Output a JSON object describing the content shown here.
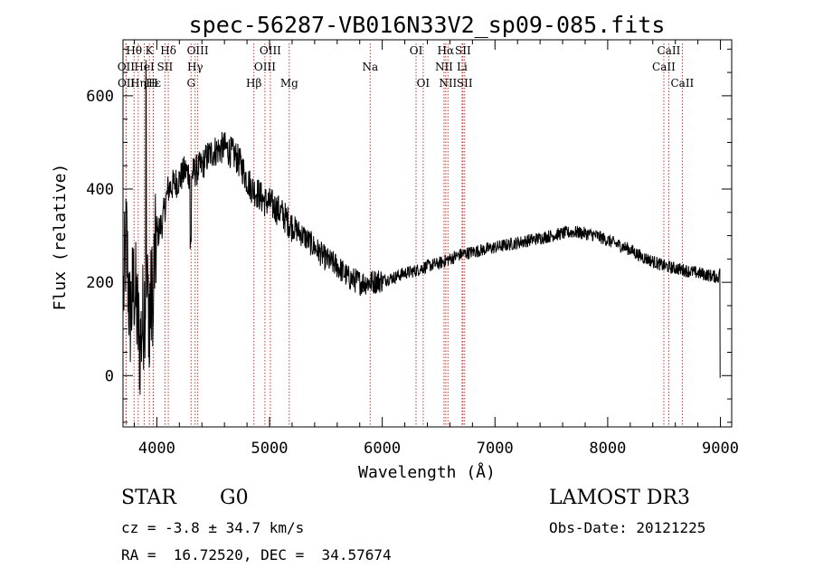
{
  "chart_data": {
    "type": "line",
    "title": "spec-56287-VB016N33V2_sp09-085.fits",
    "xlabel": "Wavelength (Å)",
    "ylabel": "Flux (relative)",
    "xlim": [
      3700,
      9100
    ],
    "ylim": [
      -110,
      720
    ],
    "xticks": [
      4000,
      5000,
      6000,
      7000,
      8000,
      9000
    ],
    "yticks": [
      0,
      200,
      400,
      600
    ],
    "lines": [
      {
        "label": "OII",
        "wl": 3727,
        "row": 1
      },
      {
        "label": "OII",
        "wl": 3729,
        "row": 2
      },
      {
        "label": "Hθ",
        "wl": 3798,
        "row": 0
      },
      {
        "label": "Hη",
        "wl": 3835,
        "row": 2
      },
      {
        "label": "HeI",
        "wl": 3889,
        "row": 1
      },
      {
        "label": "K",
        "wl": 3934,
        "row": 0
      },
      {
        "label": "H",
        "wl": 3968,
        "row": 2
      },
      {
        "label": "Hε",
        "wl": 3970,
        "row": 2
      },
      {
        "label": "SII",
        "wl": 4072,
        "row": 1
      },
      {
        "label": "Hδ",
        "wl": 4102,
        "row": 0
      },
      {
        "label": "G",
        "wl": 4304,
        "row": 2
      },
      {
        "label": "Hγ",
        "wl": 4340,
        "row": 1
      },
      {
        "label": "OIII",
        "wl": 4363,
        "row": 0
      },
      {
        "label": "Hβ",
        "wl": 4861,
        "row": 2
      },
      {
        "label": "OIII",
        "wl": 4959,
        "row": 1
      },
      {
        "label": "OIII",
        "wl": 5007,
        "row": 0
      },
      {
        "label": "Mg",
        "wl": 5175,
        "row": 2
      },
      {
        "label": "Na",
        "wl": 5893,
        "row": 1
      },
      {
        "label": "OI",
        "wl": 6300,
        "row": 0
      },
      {
        "label": "OI",
        "wl": 6363,
        "row": 2
      },
      {
        "label": "NII",
        "wl": 6548,
        "row": 1
      },
      {
        "label": "Hα",
        "wl": 6563,
        "row": 0
      },
      {
        "label": "NII",
        "wl": 6583,
        "row": 2
      },
      {
        "label": "Li",
        "wl": 6708,
        "row": 1
      },
      {
        "label": "SII",
        "wl": 6716,
        "row": 0
      },
      {
        "label": "SII",
        "wl": 6731,
        "row": 2
      },
      {
        "label": "CaII",
        "wl": 8498,
        "row": 1
      },
      {
        "label": "CaII",
        "wl": 8542,
        "row": 0
      },
      {
        "label": "CaII",
        "wl": 8662,
        "row": 2
      }
    ],
    "spectrum": {
      "description": "approximate continuum of the plotted spectrum (wavelength Å, relative flux)",
      "x": [
        3700,
        3730,
        3760,
        3800,
        3850,
        3900,
        3950,
        4000,
        4050,
        4100,
        4150,
        4200,
        4250,
        4300,
        4350,
        4400,
        4450,
        4500,
        4550,
        4600,
        4650,
        4700,
        4750,
        4800,
        4850,
        4900,
        4950,
        5000,
        5050,
        5100,
        5150,
        5200,
        5300,
        5400,
        5500,
        5600,
        5700,
        5800,
        5900,
        6000,
        6100,
        6200,
        6300,
        6400,
        6500,
        6600,
        6700,
        6800,
        6900,
        7000,
        7100,
        7200,
        7300,
        7400,
        7500,
        7600,
        7700,
        7800,
        7900,
        8000,
        8100,
        8200,
        8300,
        8400,
        8500,
        8600,
        8700,
        8800,
        8900,
        9000
      ],
      "y": [
        150,
        300,
        120,
        200,
        60,
        180,
        150,
        300,
        330,
        400,
        410,
        420,
        440,
        430,
        440,
        450,
        470,
        480,
        485,
        490,
        480,
        470,
        450,
        420,
        400,
        390,
        375,
        370,
        360,
        350,
        335,
        320,
        300,
        275,
        250,
        235,
        210,
        200,
        200,
        205,
        210,
        220,
        225,
        235,
        240,
        250,
        260,
        265,
        270,
        275,
        280,
        285,
        290,
        295,
        300,
        305,
        308,
        305,
        300,
        290,
        280,
        270,
        255,
        245,
        235,
        230,
        225,
        220,
        215,
        210
      ]
    }
  },
  "info": {
    "object_class": "STAR",
    "subclass": "G0",
    "survey": "LAMOST DR3",
    "redshift": "cz = -3.8 ± 34.7 km/s",
    "obs_date": "Obs-Date: 20121225",
    "coords": "RA =  16.72520, DEC =  34.57674"
  }
}
